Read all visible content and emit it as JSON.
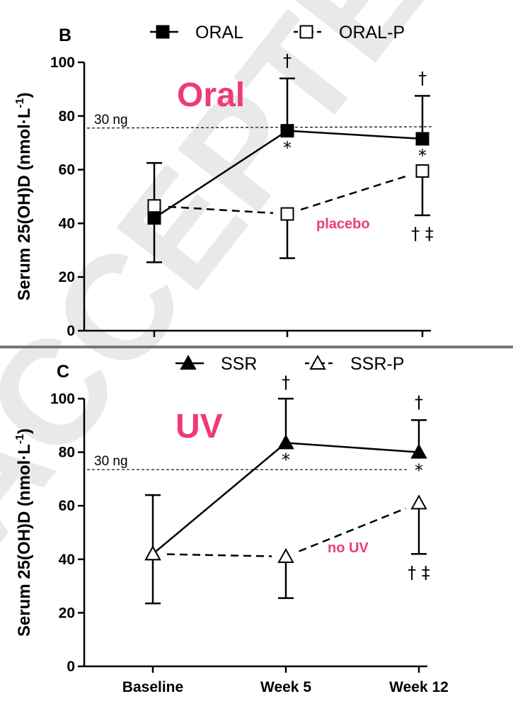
{
  "colors": {
    "accent": "#ee3a7a",
    "divider": "#777777",
    "watermark": "#e9e9e9"
  },
  "watermark_text": "ACCEPTED",
  "categories": [
    "Baseline",
    "Week 5",
    "Week 12"
  ],
  "chart_data": [
    {
      "type": "line",
      "panel_label": "B",
      "title": "Oral",
      "ylabel": "Serum 25(OH)D (nmol·L",
      "ylabel_sup": "-1",
      "ylabel_close": ")",
      "ylim": [
        0,
        100
      ],
      "yticks": [
        "0",
        "20",
        "40",
        "60",
        "80",
        "100"
      ],
      "categories": [
        "Baseline",
        "Week 5",
        "Week 12"
      ],
      "show_x_tick_labels": false,
      "reference_line": {
        "label": "30 ng",
        "y": 75.5,
        "y_end": 76
      },
      "series_annotation": "placebo",
      "legend": [
        {
          "name": "ORAL",
          "marker": "square-filled",
          "line": "solid"
        },
        {
          "name": "ORAL-P",
          "marker": "square-open",
          "line": "dashed"
        }
      ],
      "series": [
        {
          "name": "ORAL",
          "marker": "square-filled",
          "line": "solid",
          "values": [
            42,
            74.5,
            71.5
          ],
          "error_upper": [
            null,
            94,
            87.5
          ],
          "error_lower": [
            null,
            null,
            null
          ]
        },
        {
          "name": "ORAL-P",
          "marker": "square-open",
          "line": "dashed",
          "values": [
            46.5,
            43.5,
            59.5
          ],
          "error_upper": [
            62.5,
            null,
            null
          ],
          "error_lower": [
            25.5,
            27,
            43
          ]
        }
      ],
      "annotations": [
        {
          "text": "†",
          "category": 1,
          "y": 98.5
        },
        {
          "text": "*",
          "category": 1,
          "y": 66
        },
        {
          "text": "†",
          "category": 2,
          "y": 92
        },
        {
          "text": "*",
          "category": 2,
          "y": 63
        },
        {
          "text": "† ‡",
          "category": 2,
          "y": 34
        }
      ]
    },
    {
      "type": "line",
      "panel_label": "C",
      "title": "UV",
      "ylabel": "Serum 25(OH)D (nmol·L",
      "ylabel_sup": "-1",
      "ylabel_close": ")",
      "ylim": [
        0,
        100
      ],
      "yticks": [
        "0",
        "20",
        "40",
        "60",
        "80",
        "100"
      ],
      "categories": [
        "Baseline",
        "Week 5",
        "Week 12"
      ],
      "show_x_tick_labels": true,
      "reference_line": {
        "label": "30 ng",
        "y": 73.5,
        "y_end": 73.5
      },
      "series_annotation": "no UV",
      "legend": [
        {
          "name": "SSR",
          "marker": "triangle-filled",
          "line": "solid"
        },
        {
          "name": "SSR-P",
          "marker": "triangle-open",
          "line": "dashed"
        }
      ],
      "series": [
        {
          "name": "SSR",
          "marker": "triangle-filled",
          "line": "solid",
          "values": [
            42,
            83.5,
            80
          ],
          "error_upper": [
            null,
            100,
            92
          ],
          "error_lower": [
            null,
            null,
            null
          ]
        },
        {
          "name": "SSR-P",
          "marker": "triangle-open",
          "line": "dashed",
          "values": [
            42,
            41,
            61
          ],
          "error_upper": [
            64,
            null,
            null
          ],
          "error_lower": [
            23.5,
            25.5,
            42
          ]
        }
      ],
      "annotations": [
        {
          "text": "†",
          "category": 1,
          "y": 104
        },
        {
          "text": "*",
          "category": 1,
          "y": 75
        },
        {
          "text": "†",
          "category": 2,
          "y": 96.5
        },
        {
          "text": "*",
          "category": 2,
          "y": 71
        },
        {
          "text": "† ‡",
          "category": 2,
          "y": 33
        }
      ]
    }
  ]
}
